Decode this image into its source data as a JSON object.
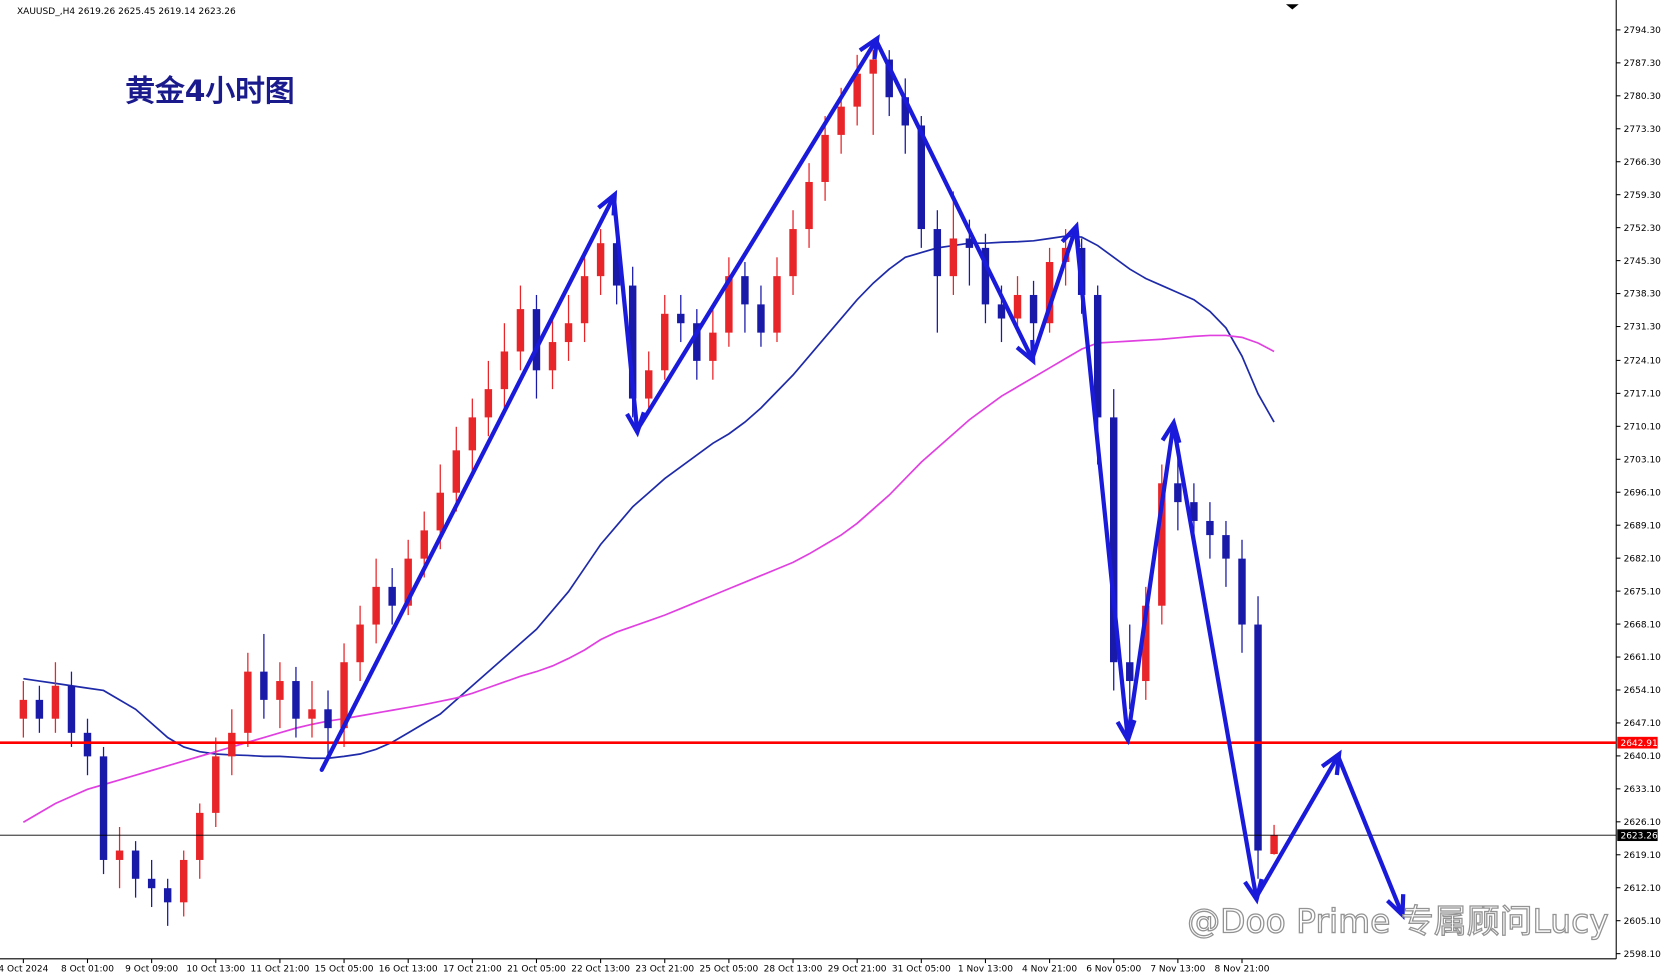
{
  "chart_data": {
    "type": "candlestick",
    "symbol": "XAUUSD_,H4",
    "title": "黄金4小时图",
    "watermark": "@Doo Prime 专属顾问Lucy",
    "up_color": "#e8262a",
    "down_color": "#1a1aa8",
    "grid": false,
    "categories": [
      "4 Oct 2024",
      null,
      null,
      null,
      "8 Oct 01:00",
      null,
      null,
      null,
      "9 Oct 09:00",
      null,
      null,
      null,
      "10 Oct 13:00",
      null,
      null,
      null,
      "11 Oct 21:00",
      null,
      null,
      null,
      "15 Oct 05:00",
      null,
      null,
      null,
      "16 Oct 13:00",
      null,
      null,
      null,
      "17 Oct 21:00",
      null,
      null,
      null,
      "21 Oct 05:00",
      null,
      null,
      null,
      "22 Oct 13:00",
      null,
      null,
      null,
      "23 Oct 21:00",
      null,
      null,
      null,
      "25 Oct 05:00",
      null,
      null,
      null,
      "28 Oct 13:00",
      null,
      null,
      null,
      "29 Oct 21:00",
      null,
      null,
      null,
      "31 Oct 05:00",
      null,
      null,
      null,
      "1 Nov 13:00",
      null,
      null,
      null,
      "4 Nov 21:00",
      null,
      null,
      null,
      "6 Nov 05:00",
      null,
      null,
      null,
      "7 Nov 13:00",
      null,
      null,
      null,
      "8 Nov 21:00",
      null,
      null
    ],
    "open": [
      2648,
      2652,
      2648,
      2655,
      2645,
      2640,
      2618,
      2620,
      2614,
      2612,
      2609,
      2618,
      2628,
      2640,
      2645,
      2658,
      2652,
      2656,
      2648,
      2650,
      2646,
      2660,
      2668,
      2676,
      2672,
      2682,
      2688,
      2696,
      2705,
      2712,
      2718,
      2726,
      2735,
      2722,
      2728,
      2732,
      2742,
      2749,
      2740,
      2716,
      2722,
      2734,
      2732,
      2724,
      2730,
      2742,
      2736,
      2730,
      2742,
      2752,
      2762,
      2772,
      2778,
      2785,
      2788,
      2780,
      2774,
      2752,
      2742,
      2750,
      2748,
      2736,
      2733,
      2738,
      2732,
      2745,
      2748,
      2738,
      2712,
      2660,
      2656,
      2672,
      2698,
      2694,
      2690,
      2687,
      2682,
      2668,
      2619.26
    ],
    "high": [
      2656,
      2655,
      2660,
      2658,
      2648,
      2642,
      2625,
      2622,
      2618,
      2614,
      2620,
      2630,
      2644,
      2650,
      2662,
      2666,
      2660,
      2659,
      2656,
      2654,
      2664,
      2672,
      2682,
      2680,
      2686,
      2692,
      2702,
      2710,
      2716,
      2724,
      2732,
      2740,
      2738,
      2734,
      2738,
      2746,
      2752,
      2751,
      2744,
      2726,
      2738,
      2738,
      2735,
      2736,
      2746,
      2745,
      2740,
      2746,
      2756,
      2766,
      2776,
      2782,
      2789,
      2790,
      2790,
      2784,
      2776,
      2756,
      2760,
      2754,
      2751,
      2740,
      2742,
      2741,
      2748,
      2752,
      2750,
      2740,
      2718,
      2668,
      2676,
      2702,
      2704,
      2698,
      2694,
      2690,
      2686,
      2674,
      2625.45
    ],
    "low": [
      2644,
      2645,
      2645,
      2642,
      2636,
      2615,
      2612,
      2610,
      2608,
      2604,
      2606,
      2614,
      2625,
      2636,
      2642,
      2648,
      2646,
      2644,
      2644,
      2640,
      2642,
      2656,
      2664,
      2668,
      2670,
      2678,
      2684,
      2692,
      2700,
      2708,
      2714,
      2722,
      2716,
      2718,
      2724,
      2728,
      2738,
      2736,
      2712,
      2713,
      2720,
      2728,
      2720,
      2720,
      2727,
      2730,
      2727,
      2728,
      2738,
      2748,
      2758,
      2768,
      2774,
      2772,
      2776,
      2768,
      2748,
      2730,
      2738,
      2740,
      2732,
      2728,
      2730,
      2728,
      2730,
      2740,
      2734,
      2702,
      2654,
      2650,
      2652,
      2668,
      2688,
      2684,
      2682,
      2676,
      2662,
      2614,
      2619.14
    ],
    "close": [
      2652,
      2648,
      2655,
      2645,
      2640,
      2618,
      2620,
      2614,
      2612,
      2609,
      2618,
      2628,
      2640,
      2645,
      2658,
      2652,
      2656,
      2648,
      2650,
      2646,
      2660,
      2668,
      2676,
      2672,
      2682,
      2688,
      2696,
      2705,
      2712,
      2718,
      2726,
      2735,
      2722,
      2728,
      2732,
      2742,
      2749,
      2740,
      2716,
      2722,
      2734,
      2732,
      2724,
      2730,
      2742,
      2736,
      2730,
      2742,
      2752,
      2762,
      2772,
      2778,
      2785,
      2788,
      2780,
      2774,
      2752,
      2742,
      2750,
      2748,
      2736,
      2733,
      2738,
      2732,
      2745,
      2748,
      2738,
      2712,
      2660,
      2656,
      2672,
      2698,
      2694,
      2690,
      2687,
      2682,
      2668,
      2620,
      2623.26
    ],
    "series": [
      {
        "color": "#1e2aa8",
        "values": [
          2656.5,
          2656,
          2655.5,
          2655,
          2654.5,
          2654,
          2652,
          2650,
          2647,
          2644,
          2642,
          2641,
          2640.5,
          2640.3,
          2640.2,
          2640,
          2640,
          2639.8,
          2639.6,
          2639.6,
          2640,
          2640.5,
          2641.5,
          2643,
          2645,
          2647,
          2649,
          2652,
          2655,
          2658,
          2661,
          2664,
          2667,
          2671,
          2675,
          2680,
          2685,
          2689,
          2693,
          2696,
          2699,
          2701.5,
          2704,
          2706.5,
          2708.5,
          2711,
          2714,
          2717.5,
          2721,
          2725,
          2729,
          2733,
          2737,
          2740.5,
          2743.5,
          2746,
          2747,
          2748,
          2748.5,
          2749,
          2749,
          2749.2,
          2749.3,
          2749.5,
          2750,
          2750.5,
          2750.3,
          2748.5,
          2746,
          2743.5,
          2741.5,
          2740,
          2738.5,
          2737,
          2734.5,
          2731,
          2725,
          2717,
          2711
        ]
      },
      {
        "color": "#e040e0",
        "values": [
          2626,
          2628,
          2630,
          2631.5,
          2633,
          2634,
          2635,
          2636,
          2637,
          2638,
          2639,
          2640,
          2641,
          2642,
          2643,
          2644,
          2645,
          2646,
          2646.8,
          2647.5,
          2648,
          2648.6,
          2649.2,
          2649.8,
          2650.4,
          2651,
          2651.7,
          2652.4,
          2653.4,
          2654.6,
          2655.8,
          2657,
          2658,
          2659.2,
          2660.8,
          2662.6,
          2664.8,
          2666.4,
          2667.6,
          2668.8,
          2670,
          2671.4,
          2672.8,
          2674.2,
          2675.6,
          2677,
          2678.4,
          2679.8,
          2681.2,
          2683,
          2685,
          2687,
          2689.5,
          2692.5,
          2695.5,
          2699,
          2702.5,
          2705.5,
          2708.5,
          2711.5,
          2714,
          2716.5,
          2718.5,
          2720.5,
          2722.5,
          2724.5,
          2726.5,
          2727.8,
          2728,
          2728.2,
          2728.4,
          2728.6,
          2728.9,
          2729.2,
          2729.4,
          2729.4,
          2729,
          2727.8,
          2726
        ]
      }
    ],
    "levels": [
      {
        "value": 2642.91,
        "color": "#ff0000"
      },
      {
        "value": 2623.26,
        "color": "#000000"
      }
    ],
    "ylim": [
      2597,
      2800.2
    ],
    "yticks": [
      {
        "value": 2794.3,
        "label": "2794.30"
      },
      {
        "value": 2787.3,
        "label": "2787.30"
      },
      {
        "value": 2780.3,
        "label": "2780.30"
      },
      {
        "value": 2773.3,
        "label": "2773.30"
      },
      {
        "value": 2766.3,
        "label": "2766.30"
      },
      {
        "value": 2759.3,
        "label": "2759.30"
      },
      {
        "value": 2752.3,
        "label": "2752.30"
      },
      {
        "value": 2745.3,
        "label": "2745.30"
      },
      {
        "value": 2738.3,
        "label": "2738.30"
      },
      {
        "value": 2731.3,
        "label": "2731.30"
      },
      {
        "value": 2724.1,
        "label": "2724.10"
      },
      {
        "value": 2717.1,
        "label": "2717.10"
      },
      {
        "value": 2710.1,
        "label": "2710.10"
      },
      {
        "value": 2703.1,
        "label": "2703.10"
      },
      {
        "value": 2696.1,
        "label": "2696.10"
      },
      {
        "value": 2689.1,
        "label": "2689.10"
      },
      {
        "value": 2682.1,
        "label": "2682.10"
      },
      {
        "value": 2675.1,
        "label": "2675.10"
      },
      {
        "value": 2668.1,
        "label": "2668.10"
      },
      {
        "value": 2661.1,
        "label": "2661.10"
      },
      {
        "value": 2654.1,
        "label": "2654.10"
      },
      {
        "value": 2647.1,
        "label": "2647.10"
      },
      {
        "value": 2640.1,
        "label": "2640.10"
      },
      {
        "value": 2633.1,
        "label": "2633.10"
      },
      {
        "value": 2626.1,
        "label": "2626.10"
      },
      {
        "value": 2619.1,
        "label": "2619.10"
      },
      {
        "value": 2612.1,
        "label": "2612.10"
      },
      {
        "value": 2605.1,
        "label": "2605.10"
      },
      {
        "value": 2598.1,
        "label": "2598.10"
      }
    ]
  }
}
